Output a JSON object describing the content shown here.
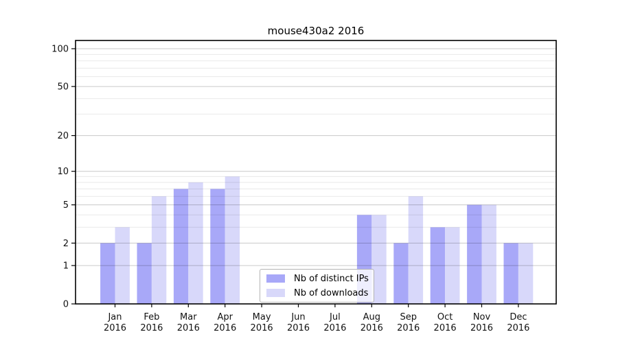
{
  "title": "mouse430a2 2016",
  "chart_data": {
    "type": "bar",
    "title": "mouse430a2 2016",
    "categories": [
      "Jan",
      "Feb",
      "Mar",
      "Apr",
      "May",
      "Jun",
      "Jul",
      "Aug",
      "Sep",
      "Oct",
      "Nov",
      "Dec"
    ],
    "year": "2016",
    "series": [
      {
        "name": "Nb of distinct IPs",
        "color": "#a8a8f8",
        "values": [
          2,
          2,
          7,
          7,
          0,
          0,
          0,
          4,
          2,
          3,
          5,
          2
        ]
      },
      {
        "name": "Nb of downloads",
        "color": "#d8d8fa",
        "values": [
          3,
          6,
          8,
          9,
          0,
          0,
          0,
          4,
          6,
          3,
          5,
          2
        ]
      }
    ],
    "yscale": "log1p",
    "ylim": [
      0,
      100
    ],
    "yticks": [
      0,
      1,
      2,
      5,
      10,
      20,
      50,
      100
    ],
    "minor_gridlines": [
      3,
      4,
      6,
      7,
      8,
      9,
      30,
      40,
      60,
      70,
      80,
      90
    ],
    "grid": "horizontal",
    "legend_position": "inside-bottom-center",
    "xlabel": "",
    "ylabel": ""
  }
}
